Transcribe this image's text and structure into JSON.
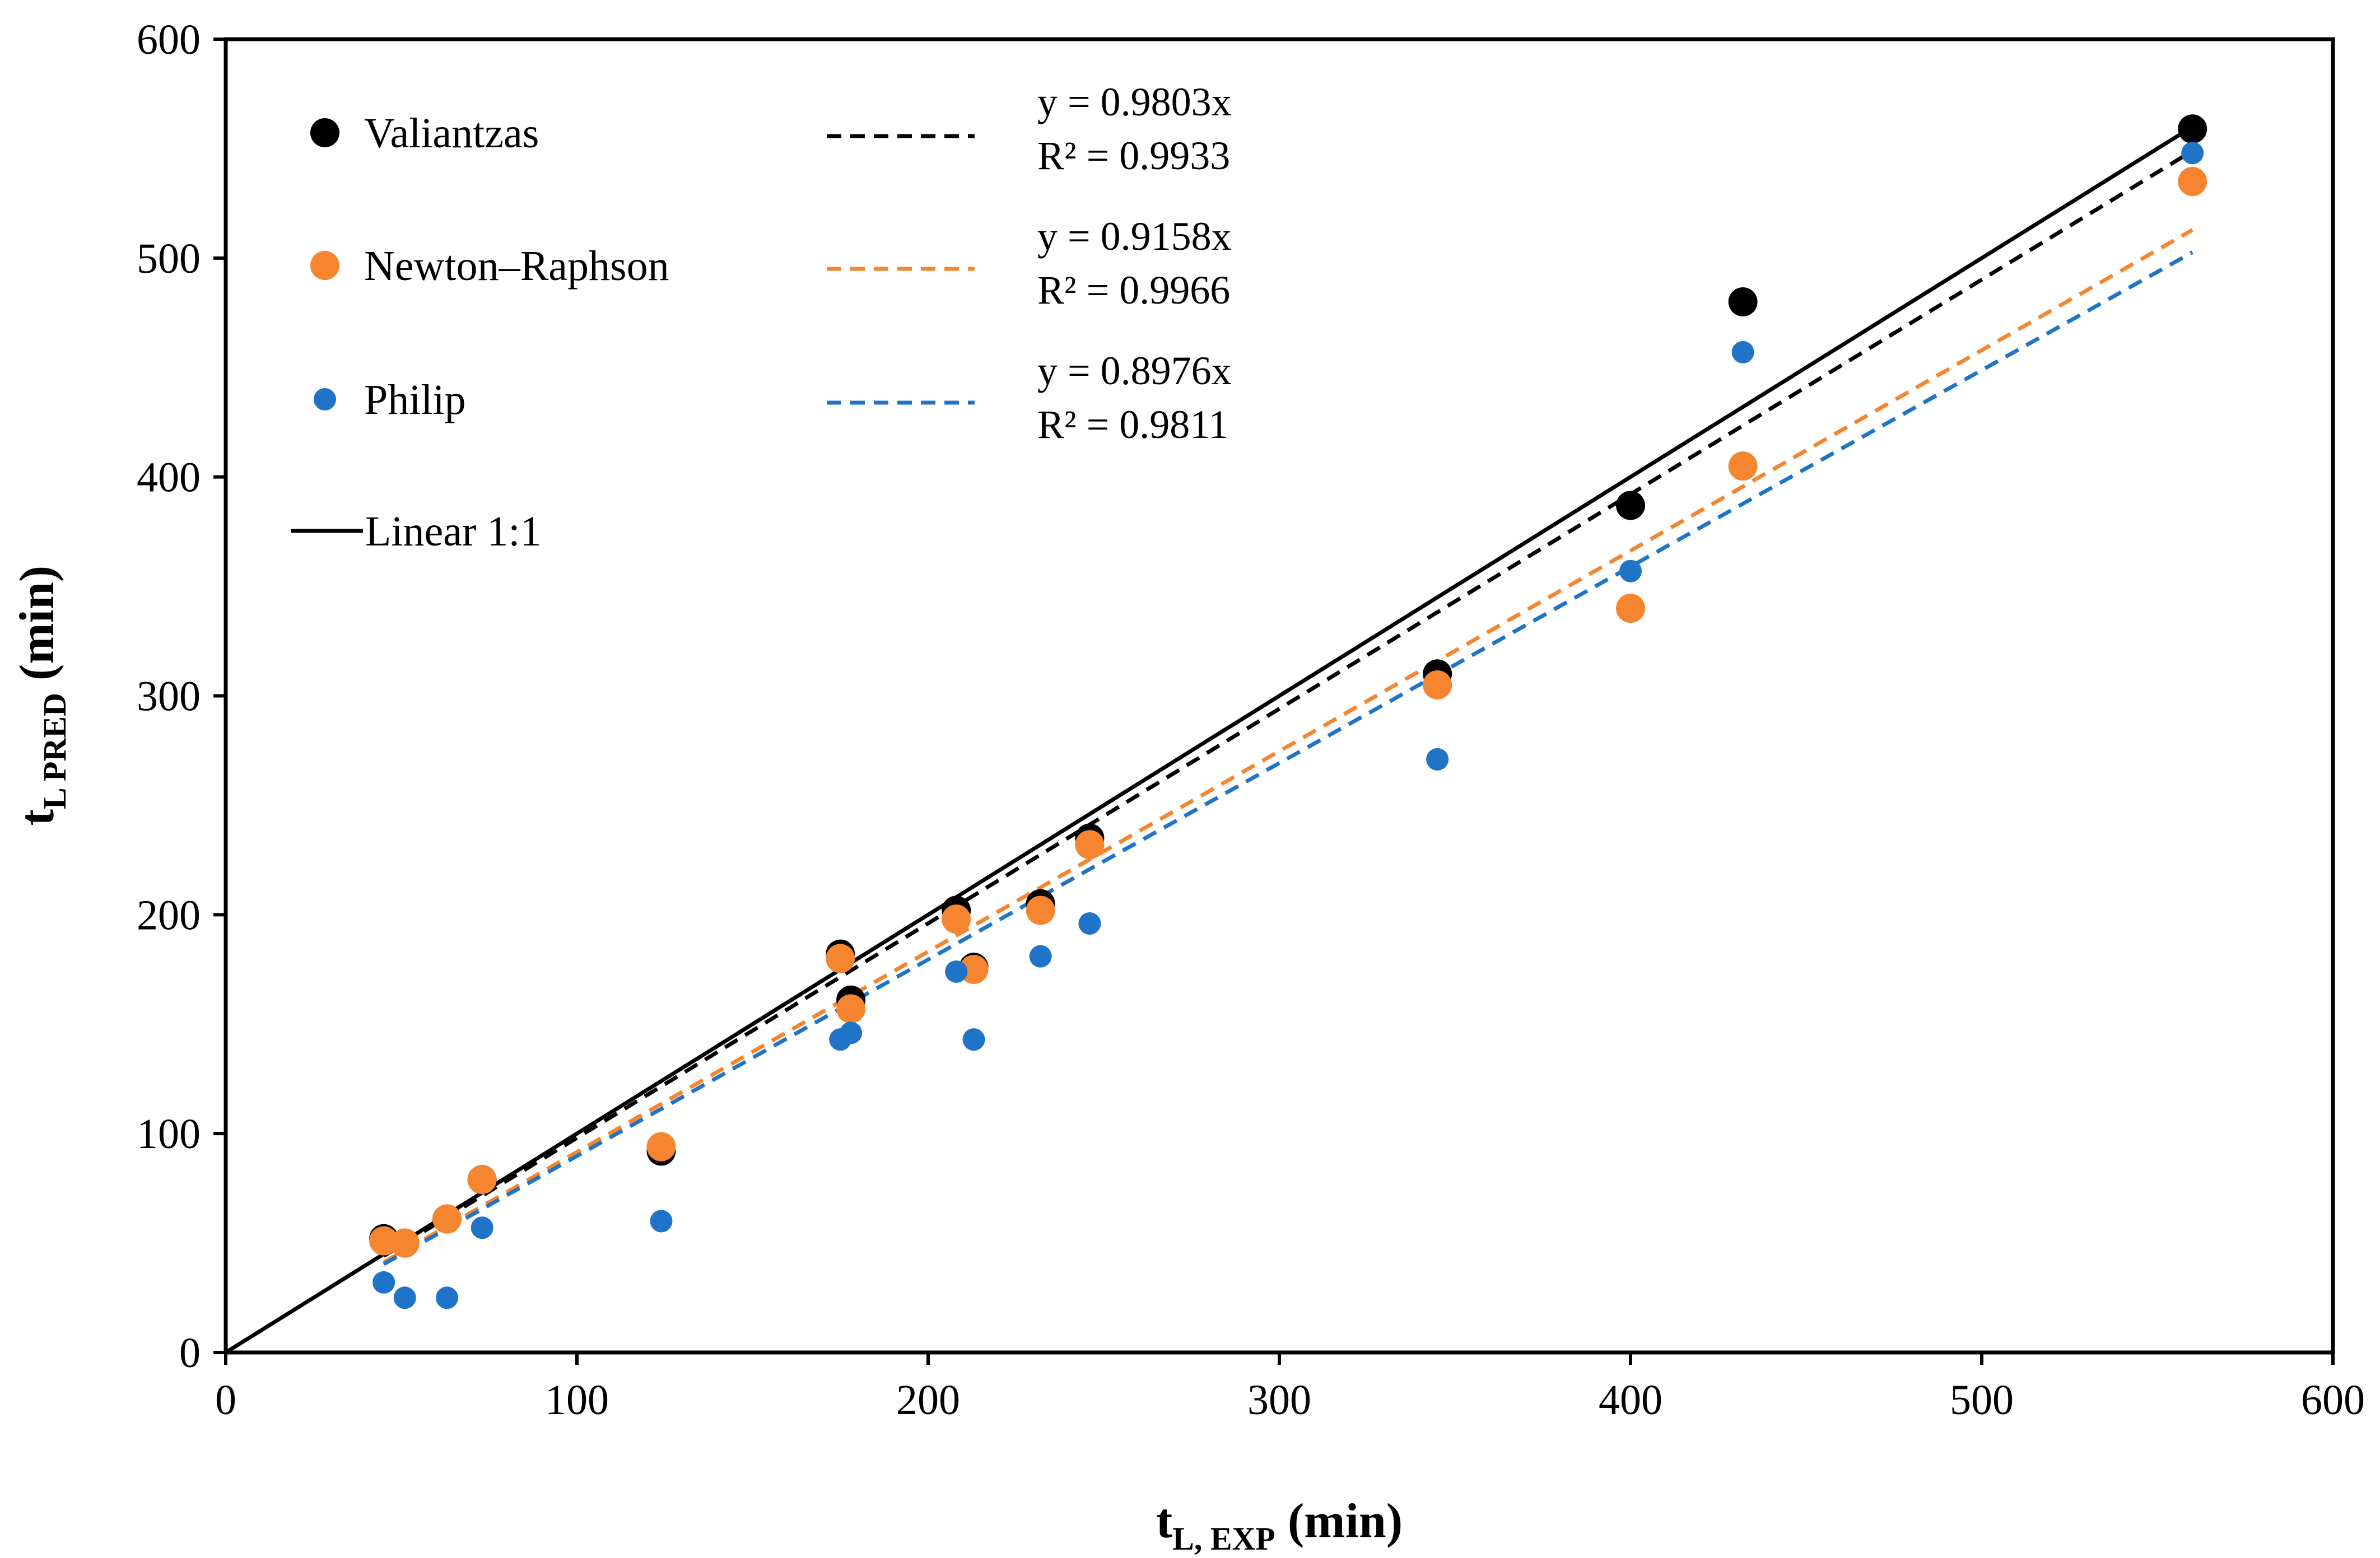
{
  "chart_data": {
    "type": "scatter",
    "xlabel": {
      "main": "t",
      "sub": "L, EXP",
      "unit": " (min)"
    },
    "ylabel": {
      "main": "t",
      "sub": "L PRED",
      "unit": " (min)"
    },
    "xlim": [
      0,
      600
    ],
    "ylim": [
      0,
      600
    ],
    "xticks": [
      "0",
      "100",
      "200",
      "300",
      "400",
      "500",
      "600"
    ],
    "yticks": [
      "0",
      "100",
      "200",
      "300",
      "400",
      "500",
      "600"
    ],
    "grid": false,
    "legend_position": "top-left",
    "series": [
      {
        "name": "Valiantzas",
        "color": "#000000",
        "marker": "large-circle",
        "points": [
          [
            45,
            52
          ],
          [
            51,
            50
          ],
          [
            63,
            61
          ],
          [
            73,
            79
          ],
          [
            124,
            92
          ],
          [
            175,
            182
          ],
          [
            178,
            161
          ],
          [
            208,
            202
          ],
          [
            213,
            176
          ],
          [
            232,
            205
          ],
          [
            246,
            235
          ],
          [
            345,
            310
          ],
          [
            400,
            387
          ],
          [
            432,
            480
          ],
          [
            560,
            559
          ]
        ],
        "trend": {
          "slope": 0.9803,
          "x_range": [
            45,
            560
          ],
          "equation": "y = 0.9803x",
          "r2": "R² = 0.9933"
        }
      },
      {
        "name": "Newton–Raphson",
        "color": "#F5862F",
        "marker": "large-circle",
        "points": [
          [
            45,
            51
          ],
          [
            51,
            50
          ],
          [
            63,
            61
          ],
          [
            73,
            79
          ],
          [
            124,
            94
          ],
          [
            175,
            180
          ],
          [
            178,
            157
          ],
          [
            208,
            198
          ],
          [
            213,
            175
          ],
          [
            232,
            202
          ],
          [
            246,
            232
          ],
          [
            345,
            305
          ],
          [
            400,
            340
          ],
          [
            432,
            405
          ],
          [
            560,
            535
          ]
        ],
        "trend": {
          "slope": 0.9158,
          "x_range": [
            45,
            560
          ],
          "equation": "y = 0.9158x",
          "r2": "R² = 0.9966"
        }
      },
      {
        "name": "Philip",
        "color": "#1F74C8",
        "marker": "small-circle",
        "points": [
          [
            45,
            32
          ],
          [
            51,
            25
          ],
          [
            63,
            25
          ],
          [
            73,
            57
          ],
          [
            124,
            60
          ],
          [
            175,
            143
          ],
          [
            178,
            146
          ],
          [
            208,
            174
          ],
          [
            213,
            143
          ],
          [
            232,
            181
          ],
          [
            246,
            196
          ],
          [
            345,
            271
          ],
          [
            400,
            357
          ],
          [
            432,
            457
          ],
          [
            560,
            548
          ]
        ],
        "trend": {
          "slope": 0.8976,
          "x_range": [
            45,
            560
          ],
          "equation": "y = 0.8976x",
          "r2": "R² = 0.9811"
        }
      }
    ],
    "reference_line": {
      "name": "Linear 1:1",
      "color": "#000000",
      "from": [
        0,
        0
      ],
      "to": [
        560,
        560
      ]
    }
  }
}
